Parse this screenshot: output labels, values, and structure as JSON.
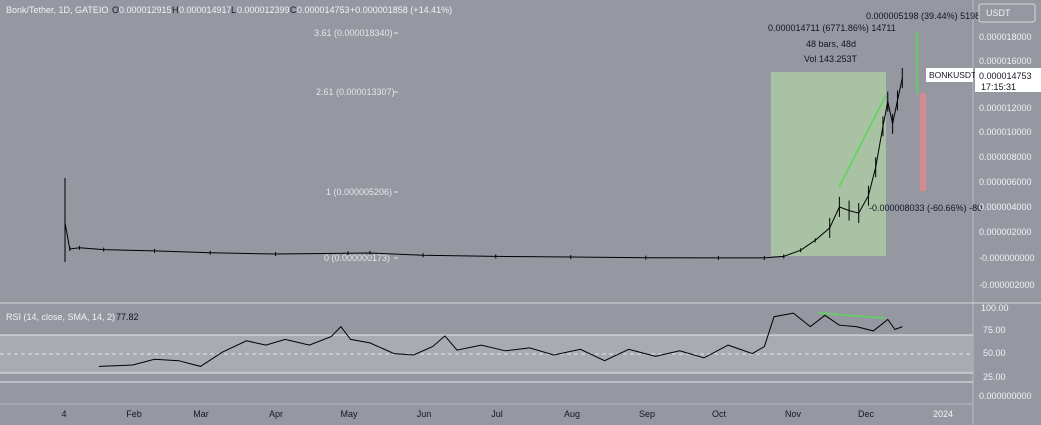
{
  "header": {
    "symbol": "Bonk/Tether, 1D, GATEIO",
    "o_label": "O",
    "o_value": "0.000012915",
    "h_label": "H",
    "h_value": "0.000014917",
    "l_label": "L",
    "l_value": "0.000012399",
    "c_label": "C",
    "c_value": "0.000014753",
    "change": "+0.000001858 (+14.41%)"
  },
  "currency_badge": "USDT",
  "price_tag": {
    "symbol": "BONKUSDT",
    "price": "0.000014753",
    "countdown": "17:15:31"
  },
  "fib_levels": [
    {
      "label": "3.61 (0.000018340)",
      "price": 1.834e-05
    },
    {
      "label": "2.61 (0.000013307)",
      "price": 1.3307e-05
    },
    {
      "label": "1 (0.000005206)",
      "price": 5.206e-06
    },
    {
      "label": "0 (0.000000173)",
      "price": 1.73e-07
    }
  ],
  "measure_box": {
    "line1": "0.000014711 (6771.86%) 14711",
    "line2": "48 bars, 48d",
    "line3": "Vol 143.253T"
  },
  "long_short": {
    "target": "0.000005198 (39.44%) 5198",
    "stop": "-0.000008033 (-60.66%) -80"
  },
  "rsi": {
    "label": "RSI (14, close, SMA, 14, 2)",
    "value": "77.82",
    "axis": [
      "100.00",
      "75.00",
      "50.00",
      "25.00"
    ]
  },
  "colors": {
    "background": "#9598a1",
    "candle": "#000000",
    "measure_fill": "#a8c2a3",
    "target_line": "#5cd65c",
    "stop_line": "#d38a91",
    "rsi_band": "#a9abb2"
  },
  "chart_data": {
    "type": "candlestick",
    "price_axis_ticks": [
      "0.000018000",
      "0.000016000",
      "0.000014000",
      "0.000012000",
      "0.000010000",
      "0.000008000",
      "0.000006000",
      "0.000004000",
      "0.000002000",
      "-0.000000000",
      "-0.000002000",
      "0.000000000"
    ],
    "time_axis_ticks": [
      "4",
      "Feb",
      "Mar",
      "Apr",
      "May",
      "Jun",
      "Jul",
      "Aug",
      "Sep",
      "Oct",
      "Nov",
      "Dec",
      "2024"
    ],
    "price_series": [
      {
        "x": "2023-01-04",
        "y": 3e-06
      },
      {
        "x": "2023-01-06",
        "y": 9e-07
      },
      {
        "x": "2023-01-10",
        "y": 1e-06
      },
      {
        "x": "2023-01-20",
        "y": 8.5e-07
      },
      {
        "x": "2023-02-10",
        "y": 7.5e-07
      },
      {
        "x": "2023-03-05",
        "y": 6e-07
      },
      {
        "x": "2023-04-01",
        "y": 5e-07
      },
      {
        "x": "2023-05-01",
        "y": 5.5e-07
      },
      {
        "x": "2023-05-10",
        "y": 5.8e-07
      },
      {
        "x": "2023-06-01",
        "y": 4e-07
      },
      {
        "x": "2023-07-01",
        "y": 3e-07
      },
      {
        "x": "2023-08-01",
        "y": 2.5e-07
      },
      {
        "x": "2023-09-01",
        "y": 2e-07
      },
      {
        "x": "2023-10-01",
        "y": 1.8e-07
      },
      {
        "x": "2023-10-20",
        "y": 1.8e-07
      },
      {
        "x": "2023-10-28",
        "y": 3e-07
      },
      {
        "x": "2023-11-04",
        "y": 8e-07
      },
      {
        "x": "2023-11-10",
        "y": 1.6e-06
      },
      {
        "x": "2023-11-16",
        "y": 2.6e-06
      },
      {
        "x": "2023-11-20",
        "y": 4.3e-06
      },
      {
        "x": "2023-11-24",
        "y": 4e-06
      },
      {
        "x": "2023-11-28",
        "y": 3.8e-06
      },
      {
        "x": "2023-12-02",
        "y": 5.2e-06
      },
      {
        "x": "2023-12-05",
        "y": 7.5e-06
      },
      {
        "x": "2023-12-08",
        "y": 1.08e-05
      },
      {
        "x": "2023-12-10",
        "y": 1.28e-05
      },
      {
        "x": "2023-12-12",
        "y": 1.1e-05
      },
      {
        "x": "2023-12-14",
        "y": 1.29e-05
      },
      {
        "x": "2023-12-16",
        "y": 1.47e-05
      }
    ],
    "rsi_series": [
      {
        "x": "2023-01-18",
        "y": 22
      },
      {
        "x": "2023-02-01",
        "y": 24
      },
      {
        "x": "2023-02-10",
        "y": 32
      },
      {
        "x": "2023-02-20",
        "y": 30
      },
      {
        "x": "2023-03-01",
        "y": 22
      },
      {
        "x": "2023-03-10",
        "y": 42
      },
      {
        "x": "2023-03-20",
        "y": 58
      },
      {
        "x": "2023-03-28",
        "y": 52
      },
      {
        "x": "2023-04-05",
        "y": 60
      },
      {
        "x": "2023-04-15",
        "y": 52
      },
      {
        "x": "2023-04-24",
        "y": 64
      },
      {
        "x": "2023-04-28",
        "y": 78
      },
      {
        "x": "2023-05-02",
        "y": 60
      },
      {
        "x": "2023-05-10",
        "y": 55
      },
      {
        "x": "2023-05-20",
        "y": 40
      },
      {
        "x": "2023-05-28",
        "y": 38
      },
      {
        "x": "2023-06-05",
        "y": 50
      },
      {
        "x": "2023-06-10",
        "y": 65
      },
      {
        "x": "2023-06-15",
        "y": 45
      },
      {
        "x": "2023-06-25",
        "y": 52
      },
      {
        "x": "2023-07-05",
        "y": 44
      },
      {
        "x": "2023-07-15",
        "y": 48
      },
      {
        "x": "2023-07-25",
        "y": 38
      },
      {
        "x": "2023-08-05",
        "y": 46
      },
      {
        "x": "2023-08-15",
        "y": 30
      },
      {
        "x": "2023-08-25",
        "y": 46
      },
      {
        "x": "2023-09-05",
        "y": 36
      },
      {
        "x": "2023-09-15",
        "y": 44
      },
      {
        "x": "2023-09-25",
        "y": 34
      },
      {
        "x": "2023-10-05",
        "y": 52
      },
      {
        "x": "2023-10-15",
        "y": 40
      },
      {
        "x": "2023-10-20",
        "y": 50
      },
      {
        "x": "2023-10-24",
        "y": 92
      },
      {
        "x": "2023-11-01",
        "y": 97
      },
      {
        "x": "2023-11-08",
        "y": 78
      },
      {
        "x": "2023-11-14",
        "y": 94
      },
      {
        "x": "2023-11-20",
        "y": 80
      },
      {
        "x": "2023-11-27",
        "y": 78
      },
      {
        "x": "2023-12-04",
        "y": 72
      },
      {
        "x": "2023-12-10",
        "y": 88
      },
      {
        "x": "2023-12-13",
        "y": 74
      },
      {
        "x": "2023-12-16",
        "y": 78
      }
    ]
  }
}
